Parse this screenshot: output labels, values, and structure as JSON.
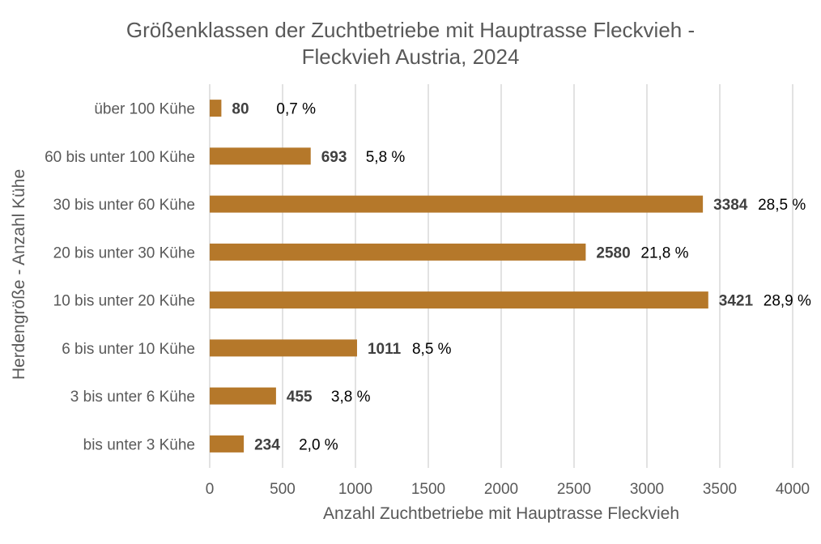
{
  "chart_data": {
    "type": "bar",
    "orientation": "horizontal",
    "title_line1": "Größenklassen der Zuchtbetriebe mit Hauptrasse Fleckvieh -",
    "title_line2": "Fleckvieh Austria, 2024",
    "xlabel": "Anzahl Zuchtbetriebe mit Hauptrasse Fleckvieh",
    "ylabel": "Herdengröße - Anzahl Kühe",
    "xlim": [
      0,
      4000
    ],
    "xticks": [
      0,
      500,
      1000,
      1500,
      2000,
      2500,
      3000,
      3500,
      4000
    ],
    "grid": "vertical",
    "bar_color": "#B5782A",
    "categories": [
      "über 100 Kühe",
      "60 bis unter 100 Kühe",
      "30 bis unter 60 Kühe",
      "20 bis unter 30 Kühe",
      "10 bis unter 20 Kühe",
      "6 bis  unter 10 Kühe",
      "3 bis  unter 6 Kühe",
      "bis unter 3 Kühe"
    ],
    "values": [
      80,
      693,
      3384,
      2580,
      3421,
      1011,
      455,
      234
    ],
    "percent_labels": [
      "0,7 %",
      "5,8 %",
      "28,5 %",
      "21,8 %",
      "28,9 %",
      "8,5 %",
      "3,8 %",
      "2,0 %"
    ]
  }
}
